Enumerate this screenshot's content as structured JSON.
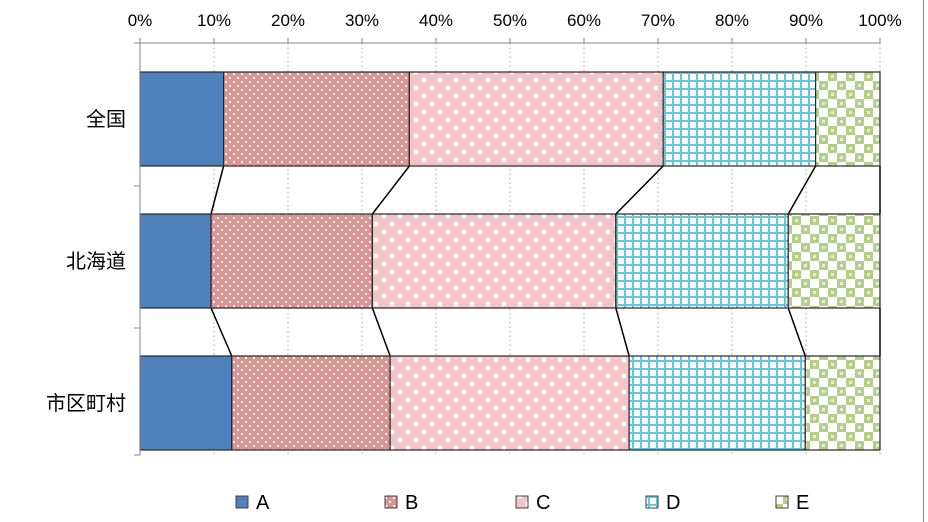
{
  "chart_data": {
    "type": "bar",
    "orientation": "horizontal",
    "stacked": "percent",
    "categories": [
      "全国",
      "北海道",
      "市区町村"
    ],
    "series": [
      {
        "name": "A",
        "values": [
          11.3,
          9.6,
          12.4
        ],
        "color": "#4f81bd",
        "pattern": "solid"
      },
      {
        "name": "B",
        "values": [
          25.1,
          21.8,
          21.4
        ],
        "color": "#d99594",
        "pattern": "dots"
      },
      {
        "name": "C",
        "values": [
          34.3,
          32.9,
          32.3
        ],
        "color": "#f2c4c8",
        "pattern": "circles"
      },
      {
        "name": "D",
        "values": [
          20.6,
          23.3,
          23.8
        ],
        "color": "#63c7df",
        "pattern": "grid"
      },
      {
        "name": "E",
        "values": [
          8.7,
          12.4,
          10.1
        ],
        "color": "#b5cf8a",
        "pattern": "checker"
      }
    ],
    "xlim": [
      0,
      100
    ],
    "xticks": [
      "0%",
      "10%",
      "20%",
      "30%",
      "40%",
      "50%",
      "60%",
      "70%",
      "80%",
      "90%",
      "100%"
    ],
    "xaxis_position": "top",
    "grid": "vertical-dotted",
    "series_lines": true,
    "legend_position": "bottom"
  }
}
